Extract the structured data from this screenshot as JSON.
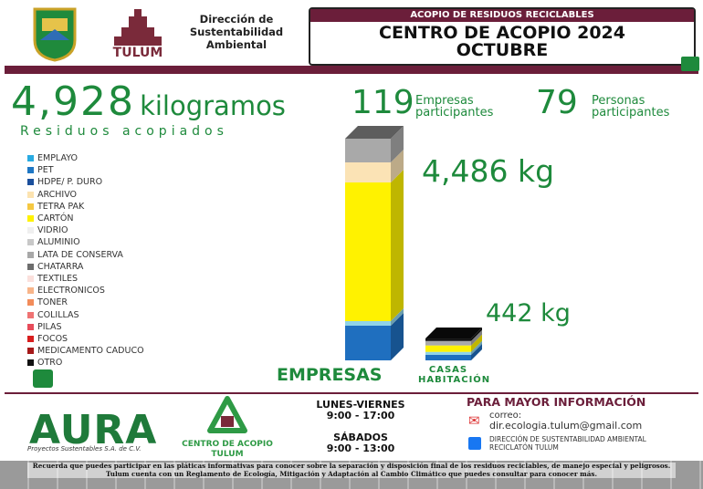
{
  "header": {
    "org": "Dirección de Sustentabilidad Ambiental",
    "tulum_logo": "TULUM",
    "banner": "ACOPIO DE RESIDUOS RECICLABLES",
    "title": "CENTRO DE ACOPIO 2024",
    "subtitle": "OCTUBRE"
  },
  "summary": {
    "total": "4,928",
    "total_unit": "kilogramos",
    "total_caption": "Residuos acopiados",
    "companies": "119",
    "companies_label": "Empresas participantes",
    "people": "79",
    "people_label": "Personas participantes"
  },
  "materials": [
    {
      "name": "EMPLAYO",
      "color": "#29abe2"
    },
    {
      "name": "PET",
      "color": "#1f77c4"
    },
    {
      "name": "HDPE/ P. DURO",
      "color": "#1b4f9c"
    },
    {
      "name": "ARCHIVO",
      "color": "#fce3b0"
    },
    {
      "name": "TETRA PAK",
      "color": "#f5c842"
    },
    {
      "name": "CARTÓN",
      "color": "#fff200"
    },
    {
      "name": "VIDRIO",
      "color": "#efefef"
    },
    {
      "name": "ALUMINIO",
      "color": "#c8c8c8"
    },
    {
      "name": "LATA DE CONSERVA",
      "color": "#a8a8a8"
    },
    {
      "name": "CHATARRA",
      "color": "#6d6d6d"
    },
    {
      "name": "TEXTILES",
      "color": "#fbe0dc"
    },
    {
      "name": "ELECTRONICOS",
      "color": "#f8b58a"
    },
    {
      "name": "TONER",
      "color": "#f28c5a"
    },
    {
      "name": "COLILLAS",
      "color": "#ef7373"
    },
    {
      "name": "PILAS",
      "color": "#e74c5a"
    },
    {
      "name": "FOCOS",
      "color": "#d81e1e"
    },
    {
      "name": "MEDICAMENTO CADUCO",
      "color": "#a51919"
    },
    {
      "name": "OTRO",
      "color": "#111111"
    }
  ],
  "bars": [
    {
      "label": "EMPRESAS",
      "total": "4,486 kg",
      "segments": [
        {
          "color": "#1f6fbf",
          "value": 702
        },
        {
          "color": "#8fd3e8",
          "value": 92
        },
        {
          "color": "#fff200",
          "value": 2806
        },
        {
          "color": "#fbe3b5",
          "value": 406
        },
        {
          "color": "#a9a9a9",
          "value": 480
        }
      ]
    },
    {
      "label": "CASAS HABITACIÓN",
      "total": "442 kg",
      "segments": [
        {
          "color": "#1f6fbf",
          "value": 112
        },
        {
          "color": "#8fd3e8",
          "value": 60
        },
        {
          "color": "#fff200",
          "value": 130
        },
        {
          "color": "#a9a9a9",
          "value": 90
        },
        {
          "color": "#111111",
          "value": 50
        }
      ]
    }
  ],
  "footer": {
    "aura": "AURA",
    "aura_caption": "Proyectos Sustentables S.A. de C.V.",
    "center_logo": "CENTRO DE ACOPIO TULUM",
    "weekdays": "LUNES-VIERNES",
    "weekdays_hours": "9:00 - 17:00",
    "saturday": "SÁBADOS",
    "saturday_hours": "9:00 - 13:00",
    "info_title": "PARA MAYOR INFORMACIÓN",
    "email_label": "correo:",
    "email": "dir.ecologia.tulum@gmail.com",
    "facebook": "DIRECCIÓN DE SUSTENTABILIDAD AMBIENTAL RECICLATÓN TULUM",
    "note_1": "Recuerda que puedes participar en las pláticas informativas para conocer sobre la separación y disposición final de los residuos reciclables, de manejo especial y peligrosos.",
    "note_2": "Tulum cuenta con un Reglamento de Ecología, Mitigación y Adaptación al Cambio Climático que puedes consultar para conocer más."
  }
}
